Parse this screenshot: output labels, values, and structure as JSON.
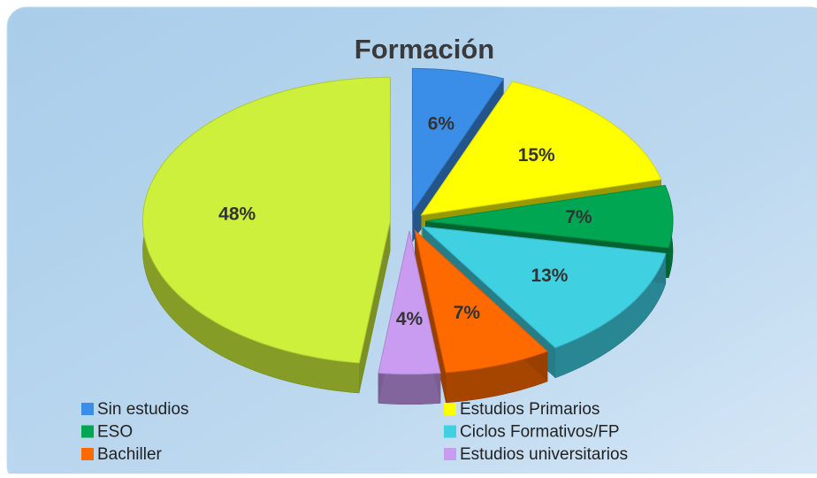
{
  "chart_data": {
    "type": "pie",
    "title": "Formación",
    "categories": [
      "Sin estudios",
      "Estudios Primarios",
      "ESO",
      "Ciclos Formativos/FP",
      "Bachiller",
      "Estudios universitarios",
      null
    ],
    "values": [
      6,
      15,
      7,
      13,
      7,
      4,
      48
    ],
    "value_labels": [
      "6%",
      "15%",
      "7%",
      "13%",
      "7%",
      "4%",
      "48%"
    ],
    "colors": [
      "#3a8ee8",
      "#ffff00",
      "#00a651",
      "#3fd0e2",
      "#ff6a00",
      "#c99cf2",
      "#ccf03c"
    ]
  }
}
